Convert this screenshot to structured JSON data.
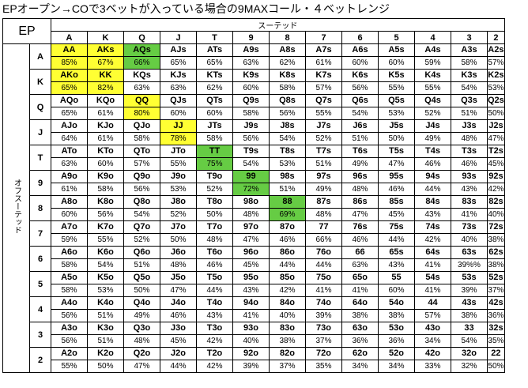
{
  "title": "EPオープン→COで3ベットが入っている場合の9MAXコール・４ベットレンジ",
  "position": "EP",
  "suited_label": "スーテッド",
  "offsuit_label": "オフスーテッド",
  "colors": {
    "yellow": "#ffff33",
    "green": "#66cc44"
  },
  "ranks": [
    "A",
    "K",
    "Q",
    "J",
    "T",
    "9",
    "8",
    "7",
    "6",
    "5",
    "4",
    "3",
    "2"
  ],
  "rows": [
    [
      {
        "h": "AA",
        "p": "85%",
        "c": "y"
      },
      {
        "h": "AKs",
        "p": "67%",
        "c": "y"
      },
      {
        "h": "AQs",
        "p": "66%",
        "c": "g"
      },
      {
        "h": "AJs",
        "p": "65%"
      },
      {
        "h": "ATs",
        "p": "65%"
      },
      {
        "h": "A9s",
        "p": "63%"
      },
      {
        "h": "A8s",
        "p": "62%"
      },
      {
        "h": "A7s",
        "p": "61%"
      },
      {
        "h": "A6s",
        "p": "60%"
      },
      {
        "h": "A5s",
        "p": "60%"
      },
      {
        "h": "A4s",
        "p": "59%"
      },
      {
        "h": "A3s",
        "p": "58%"
      },
      {
        "h": "A2s",
        "p": "57%"
      }
    ],
    [
      {
        "h": "AKo",
        "p": "65%",
        "c": "y"
      },
      {
        "h": "KK",
        "p": "82%",
        "c": "y"
      },
      {
        "h": "KQs",
        "p": "63%"
      },
      {
        "h": "KJs",
        "p": "63%"
      },
      {
        "h": "KTs",
        "p": "62%"
      },
      {
        "h": "K9s",
        "p": "60%"
      },
      {
        "h": "K8s",
        "p": "58%"
      },
      {
        "h": "K7s",
        "p": "57%"
      },
      {
        "h": "K6s",
        "p": "56%"
      },
      {
        "h": "K5s",
        "p": "55%"
      },
      {
        "h": "K4s",
        "p": "55%"
      },
      {
        "h": "K3s",
        "p": "54%"
      },
      {
        "h": "K2s",
        "p": "53%"
      }
    ],
    [
      {
        "h": "AQo",
        "p": "65%"
      },
      {
        "h": "KQo",
        "p": "61%"
      },
      {
        "h": "QQ",
        "p": "80%",
        "c": "y"
      },
      {
        "h": "QJs",
        "p": "60%"
      },
      {
        "h": "QTs",
        "p": "60%"
      },
      {
        "h": "Q9s",
        "p": "58%"
      },
      {
        "h": "Q8s",
        "p": "56%"
      },
      {
        "h": "Q7s",
        "p": "55%"
      },
      {
        "h": "Q6s",
        "p": "54%"
      },
      {
        "h": "Q5s",
        "p": "53%"
      },
      {
        "h": "Q4s",
        "p": "52%"
      },
      {
        "h": "Q3s",
        "p": "51%"
      },
      {
        "h": "Q2s",
        "p": "50%"
      }
    ],
    [
      {
        "h": "AJo",
        "p": "64%"
      },
      {
        "h": "KJo",
        "p": "61%"
      },
      {
        "h": "QJo",
        "p": "58%"
      },
      {
        "h": "JJ",
        "p": "78%",
        "c": "y"
      },
      {
        "h": "JTs",
        "p": "58%"
      },
      {
        "h": "J9s",
        "p": "56%"
      },
      {
        "h": "J8s",
        "p": "54%"
      },
      {
        "h": "J7s",
        "p": "52%"
      },
      {
        "h": "J6s",
        "p": "51%"
      },
      {
        "h": "J5s",
        "p": "50%"
      },
      {
        "h": "J4s",
        "p": "49%"
      },
      {
        "h": "J3s",
        "p": "48%"
      },
      {
        "h": "J2s",
        "p": "47%"
      }
    ],
    [
      {
        "h": "ATo",
        "p": "63%"
      },
      {
        "h": "KTo",
        "p": "60%"
      },
      {
        "h": "QTo",
        "p": "57%"
      },
      {
        "h": "JTo",
        "p": "55%"
      },
      {
        "h": "TT",
        "p": "75%",
        "c": "g"
      },
      {
        "h": "T9s",
        "p": "54%"
      },
      {
        "h": "T8s",
        "p": "53%"
      },
      {
        "h": "T7s",
        "p": "51%"
      },
      {
        "h": "T6s",
        "p": "49%"
      },
      {
        "h": "T5s",
        "p": "47%"
      },
      {
        "h": "T4s",
        "p": "46%"
      },
      {
        "h": "T3s",
        "p": "46%"
      },
      {
        "h": "T2s",
        "p": "45%"
      }
    ],
    [
      {
        "h": "A9o",
        "p": "61%"
      },
      {
        "h": "K9o",
        "p": "58%"
      },
      {
        "h": "Q9o",
        "p": "56%"
      },
      {
        "h": "J9o",
        "p": "53%"
      },
      {
        "h": "T9o",
        "p": "52%"
      },
      {
        "h": "99",
        "p": "72%",
        "c": "g"
      },
      {
        "h": "98s",
        "p": "51%"
      },
      {
        "h": "97s",
        "p": "49%"
      },
      {
        "h": "96s",
        "p": "48%"
      },
      {
        "h": "95s",
        "p": "46%"
      },
      {
        "h": "94s",
        "p": "44%"
      },
      {
        "h": "93s",
        "p": "43%"
      },
      {
        "h": "92s",
        "p": "42%"
      }
    ],
    [
      {
        "h": "A8o",
        "p": "60%"
      },
      {
        "h": "K8o",
        "p": "56%"
      },
      {
        "h": "Q8o",
        "p": "54%"
      },
      {
        "h": "J8o",
        "p": "52%"
      },
      {
        "h": "T8o",
        "p": "50%"
      },
      {
        "h": "98o",
        "p": "48%"
      },
      {
        "h": "88",
        "p": "69%",
        "c": "g"
      },
      {
        "h": "87s",
        "p": "48%"
      },
      {
        "h": "86s",
        "p": "47%"
      },
      {
        "h": "85s",
        "p": "45%"
      },
      {
        "h": "84s",
        "p": "43%"
      },
      {
        "h": "83s",
        "p": "41%"
      },
      {
        "h": "82s",
        "p": "40%"
      }
    ],
    [
      {
        "h": "A7o",
        "p": "59%"
      },
      {
        "h": "K7o",
        "p": "55%"
      },
      {
        "h": "Q7o",
        "p": "52%"
      },
      {
        "h": "J7o",
        "p": "50%"
      },
      {
        "h": "T7o",
        "p": "48%"
      },
      {
        "h": "97o",
        "p": "47%"
      },
      {
        "h": "87o",
        "p": "46%"
      },
      {
        "h": "77",
        "p": "66%"
      },
      {
        "h": "76s",
        "p": "46%"
      },
      {
        "h": "75s",
        "p": "44%"
      },
      {
        "h": "74s",
        "p": "42%"
      },
      {
        "h": "73s",
        "p": "40%"
      },
      {
        "h": "72s",
        "p": "38%"
      }
    ],
    [
      {
        "h": "A6o",
        "p": "58%"
      },
      {
        "h": "K6o",
        "p": "54%"
      },
      {
        "h": "Q6o",
        "p": "51%"
      },
      {
        "h": "J6o",
        "p": "48%"
      },
      {
        "h": "T6o",
        "p": "46%"
      },
      {
        "h": "96o",
        "p": "45%"
      },
      {
        "h": "86o",
        "p": "44%"
      },
      {
        "h": "76o",
        "p": "44%"
      },
      {
        "h": "66",
        "p": "63%"
      },
      {
        "h": "65s",
        "p": "43%"
      },
      {
        "h": "64s",
        "p": "41%"
      },
      {
        "h": "63s",
        "p": "39%%"
      },
      {
        "h": "62s",
        "p": "38%"
      }
    ],
    [
      {
        "h": "A5o",
        "p": "58%"
      },
      {
        "h": "K5o",
        "p": "53%"
      },
      {
        "h": "Q5o",
        "p": "50%"
      },
      {
        "h": "J5o",
        "p": "47%"
      },
      {
        "h": "T5o",
        "p": "44%"
      },
      {
        "h": "95o",
        "p": "43%"
      },
      {
        "h": "85o",
        "p": "42%"
      },
      {
        "h": "75o",
        "p": "41%"
      },
      {
        "h": "65o",
        "p": "41%"
      },
      {
        "h": "55",
        "p": "60%"
      },
      {
        "h": "54s",
        "p": "41%"
      },
      {
        "h": "53s",
        "p": "39%"
      },
      {
        "h": "52s",
        "p": "37%"
      }
    ],
    [
      {
        "h": "A4o",
        "p": "56%"
      },
      {
        "h": "K4o",
        "p": "51%"
      },
      {
        "h": "Q4o",
        "p": "49%"
      },
      {
        "h": "J4o",
        "p": "46%"
      },
      {
        "h": "T4o",
        "p": "43%"
      },
      {
        "h": "94o",
        "p": "41%"
      },
      {
        "h": "84o",
        "p": "40%"
      },
      {
        "h": "74o",
        "p": "39%"
      },
      {
        "h": "64o",
        "p": "38%"
      },
      {
        "h": "54o",
        "p": "38%"
      },
      {
        "h": "44",
        "p": "57%"
      },
      {
        "h": "43s",
        "p": "38%"
      },
      {
        "h": "42s",
        "p": "36%"
      }
    ],
    [
      {
        "h": "A3o",
        "p": "56%"
      },
      {
        "h": "K3o",
        "p": "51%"
      },
      {
        "h": "Q3o",
        "p": "48%"
      },
      {
        "h": "J3o",
        "p": "45%"
      },
      {
        "h": "T3o",
        "p": "42%"
      },
      {
        "h": "93o",
        "p": "40%"
      },
      {
        "h": "83o",
        "p": "38%"
      },
      {
        "h": "73o",
        "p": "37%"
      },
      {
        "h": "63o",
        "p": "36%"
      },
      {
        "h": "53o",
        "p": "36%"
      },
      {
        "h": "43o",
        "p": "34%"
      },
      {
        "h": "33",
        "p": "54%"
      },
      {
        "h": "32s",
        "p": "35%"
      }
    ],
    [
      {
        "h": "A2o",
        "p": "55%"
      },
      {
        "h": "K2o",
        "p": "50%"
      },
      {
        "h": "Q2o",
        "p": "47%"
      },
      {
        "h": "J2o",
        "p": "44%"
      },
      {
        "h": "T2o",
        "p": "42%"
      },
      {
        "h": "92o",
        "p": "39%"
      },
      {
        "h": "82o",
        "p": "37%"
      },
      {
        "h": "72o",
        "p": "35%"
      },
      {
        "h": "62o",
        "p": "34%"
      },
      {
        "h": "52o",
        "p": "34%"
      },
      {
        "h": "42o",
        "p": "33%"
      },
      {
        "h": "32o",
        "p": "32%"
      },
      {
        "h": "22",
        "p": "50%"
      }
    ]
  ]
}
